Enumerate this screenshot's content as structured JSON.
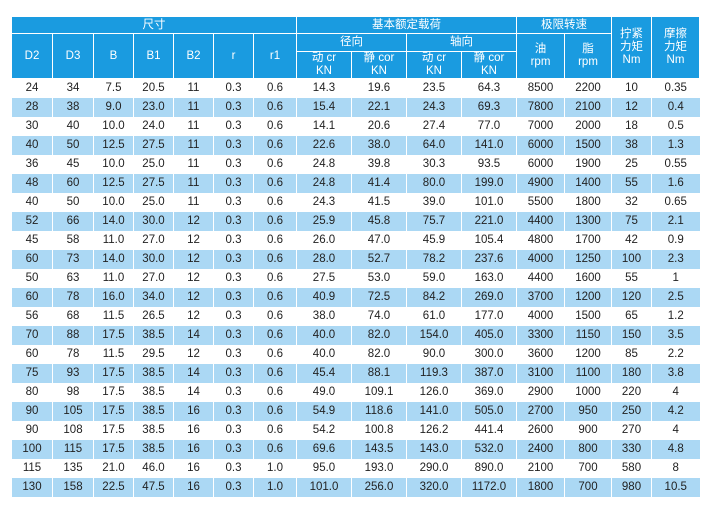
{
  "headers": {
    "size_group": "尺寸",
    "load_group": "基本额定载荷",
    "radial": "径向",
    "axial": "轴向",
    "speed_group": "极限转速",
    "torque": [
      "拧紧",
      "力矩",
      "Nm"
    ],
    "friction": [
      "摩擦",
      "力矩",
      "Nm"
    ],
    "dim_cols": [
      "D2",
      "D3",
      "B",
      "B1",
      "B2",
      "r",
      "r1"
    ],
    "dyn": [
      "动 cr",
      "KN"
    ],
    "stat": [
      "静 cor",
      "KN"
    ],
    "oil": [
      "油",
      "rpm"
    ],
    "grease": [
      "脂",
      "rpm"
    ]
  },
  "rows": [
    [
      "24",
      "34",
      "7.5",
      "20.5",
      "11",
      "0.3",
      "0.6",
      "14.3",
      "19.6",
      "23.5",
      "64.3",
      "8500",
      "2200",
      "10",
      "0.35"
    ],
    [
      "28",
      "38",
      "9.0",
      "23.0",
      "11",
      "0.3",
      "0.6",
      "15.4",
      "22.1",
      "24.3",
      "69.3",
      "7800",
      "2100",
      "12",
      "0.4"
    ],
    [
      "30",
      "40",
      "10.0",
      "24.0",
      "11",
      "0.3",
      "0.6",
      "14.1",
      "20.6",
      "27.4",
      "77.0",
      "7000",
      "2000",
      "18",
      "0.5"
    ],
    [
      "40",
      "50",
      "12.5",
      "27.5",
      "11",
      "0.3",
      "0.6",
      "22.6",
      "38.0",
      "64.0",
      "141.0",
      "6000",
      "1500",
      "38",
      "1.3"
    ],
    [
      "36",
      "45",
      "10.0",
      "25.0",
      "11",
      "0.3",
      "0.6",
      "24.8",
      "39.8",
      "30.3",
      "93.5",
      "6000",
      "1900",
      "25",
      "0.55"
    ],
    [
      "48",
      "60",
      "12.5",
      "27.5",
      "11",
      "0.3",
      "0.6",
      "24.8",
      "41.4",
      "80.0",
      "199.0",
      "4900",
      "1400",
      "55",
      "1.6"
    ],
    [
      "40",
      "50",
      "10.0",
      "25.0",
      "11",
      "0.3",
      "0.6",
      "24.3",
      "41.5",
      "39.0",
      "101.0",
      "5500",
      "1800",
      "32",
      "0.65"
    ],
    [
      "52",
      "66",
      "14.0",
      "30.0",
      "12",
      "0.3",
      "0.6",
      "25.9",
      "45.8",
      "75.7",
      "221.0",
      "4400",
      "1300",
      "75",
      "2.1"
    ],
    [
      "45",
      "58",
      "11.0",
      "27.0",
      "12",
      "0.3",
      "0.6",
      "26.0",
      "47.0",
      "45.9",
      "105.4",
      "4800",
      "1700",
      "42",
      "0.9"
    ],
    [
      "60",
      "73",
      "14.0",
      "30.0",
      "12",
      "0.3",
      "0.6",
      "28.0",
      "52.7",
      "78.2",
      "237.6",
      "4000",
      "1250",
      "100",
      "2.3"
    ],
    [
      "50",
      "63",
      "11.0",
      "27.0",
      "12",
      "0.3",
      "0.6",
      "27.5",
      "53.0",
      "59.0",
      "163.0",
      "4400",
      "1600",
      "55",
      "1"
    ],
    [
      "60",
      "78",
      "16.0",
      "34.0",
      "12",
      "0.3",
      "0.6",
      "40.9",
      "72.5",
      "84.2",
      "269.0",
      "3700",
      "1200",
      "120",
      "2.5"
    ],
    [
      "56",
      "68",
      "11.5",
      "26.5",
      "12",
      "0.3",
      "0.6",
      "38.0",
      "74.0",
      "61.0",
      "177.0",
      "4000",
      "1500",
      "65",
      "1.2"
    ],
    [
      "70",
      "88",
      "17.5",
      "38.5",
      "14",
      "0.3",
      "0.6",
      "40.0",
      "82.0",
      "154.0",
      "405.0",
      "3300",
      "1150",
      "150",
      "3.5"
    ],
    [
      "60",
      "78",
      "11.5",
      "29.5",
      "12",
      "0.3",
      "0.6",
      "40.0",
      "82.0",
      "90.0",
      "300.0",
      "3600",
      "1200",
      "85",
      "2.2"
    ],
    [
      "75",
      "93",
      "17.5",
      "38.5",
      "14",
      "0.3",
      "0.6",
      "45.4",
      "88.1",
      "119.3",
      "387.0",
      "3100",
      "1100",
      "180",
      "3.8"
    ],
    [
      "80",
      "98",
      "17.5",
      "38.5",
      "14",
      "0.3",
      "0.6",
      "49.0",
      "109.1",
      "126.0",
      "369.0",
      "2900",
      "1000",
      "220",
      "4"
    ],
    [
      "90",
      "105",
      "17.5",
      "38.5",
      "16",
      "0.3",
      "0.6",
      "54.9",
      "118.6",
      "141.0",
      "505.0",
      "2700",
      "950",
      "250",
      "4.2"
    ],
    [
      "90",
      "108",
      "17.5",
      "38.5",
      "16",
      "0.3",
      "0.6",
      "54.2",
      "100.8",
      "126.2",
      "441.4",
      "2600",
      "900",
      "270",
      "4"
    ],
    [
      "100",
      "115",
      "17.5",
      "38.5",
      "16",
      "0.3",
      "0.6",
      "69.6",
      "143.5",
      "143.0",
      "532.0",
      "2400",
      "800",
      "330",
      "4.8"
    ],
    [
      "115",
      "135",
      "21.0",
      "46.0",
      "16",
      "0.3",
      "1.0",
      "95.0",
      "193.0",
      "290.0",
      "890.0",
      "2100",
      "700",
      "580",
      "8"
    ],
    [
      "130",
      "158",
      "22.5",
      "47.5",
      "16",
      "0.3",
      "1.0",
      "101.0",
      "256.0",
      "320.0",
      "1172.0",
      "1800",
      "700",
      "980",
      "10.5"
    ]
  ]
}
